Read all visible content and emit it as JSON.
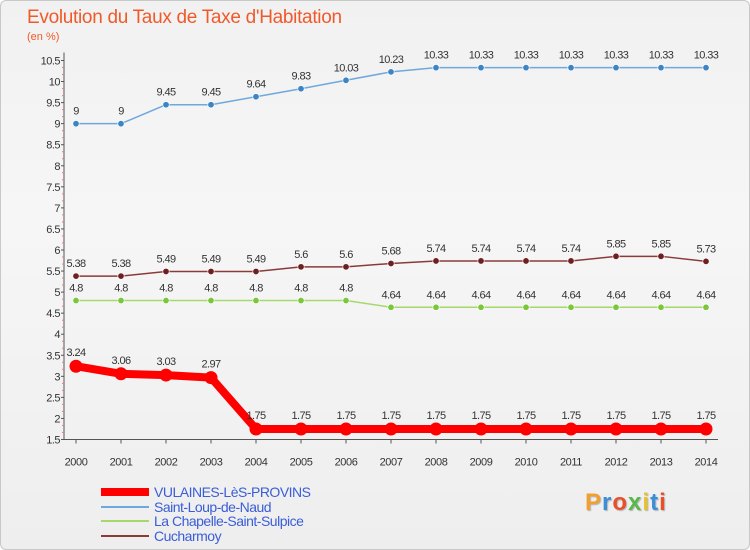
{
  "title": "Evolution du Taux de Taxe d'Habitation",
  "subtitle": "(en %)",
  "chart_data": {
    "type": "line",
    "title": "Evolution du Taux de Taxe d'Habitation",
    "ylabel": "(en %)",
    "x": [
      "2000",
      "2001",
      "2002",
      "2003",
      "2004",
      "2005",
      "2006",
      "2007",
      "2008",
      "2009",
      "2010",
      "2011",
      "2012",
      "2013",
      "2014"
    ],
    "ylim": [
      1.5,
      10.5
    ],
    "yticks": [
      "1.5",
      "2",
      "2.5",
      "3",
      "3.5",
      "4",
      "4.5",
      "5",
      "5.5",
      "6",
      "6.5",
      "7",
      "7.5",
      "8",
      "8.5",
      "9",
      "9.5",
      "10",
      "10.5"
    ],
    "grid": false,
    "series": [
      {
        "name": "VULAINES-LèS-PROVINS",
        "color": "#ff0000",
        "width": 8,
        "values": [
          3.24,
          3.06,
          3.03,
          2.97,
          1.75,
          1.75,
          1.75,
          1.75,
          1.75,
          1.75,
          1.75,
          1.75,
          1.75,
          1.75,
          1.75
        ],
        "labels": [
          "3.24",
          "3.06",
          "3.03",
          "2.97",
          "1.75",
          "1.75",
          "1.75",
          "1.75",
          "1.75",
          "1.75",
          "1.75",
          "1.75",
          "1.75",
          "1.75",
          "1.75"
        ]
      },
      {
        "name": "Saint-Loup-de-Naud",
        "color": "#6fa8dc",
        "marker": "#3c84c4",
        "width": 1.5,
        "values": [
          9,
          9,
          9.45,
          9.45,
          9.64,
          9.83,
          10.03,
          10.23,
          10.33,
          10.33,
          10.33,
          10.33,
          10.33,
          10.33,
          10.33
        ],
        "labels": [
          "9",
          "9",
          "9.45",
          "9.45",
          "9.64",
          "9.83",
          "10.03",
          "10.23",
          "10.33",
          "10.33",
          "10.33",
          "10.33",
          "10.33",
          "10.33",
          "10.33"
        ]
      },
      {
        "name": "La Chapelle-Saint-Sulpice",
        "color": "#a6d96a",
        "marker": "#7cc63b",
        "width": 1.5,
        "values": [
          4.8,
          4.8,
          4.8,
          4.8,
          4.8,
          4.8,
          4.8,
          4.64,
          4.64,
          4.64,
          4.64,
          4.64,
          4.64,
          4.64,
          4.64
        ],
        "labels": [
          "4.8",
          "4.8",
          "4.8",
          "4.8",
          "4.8",
          "4.8",
          "4.8",
          "4.64",
          "4.64",
          "4.64",
          "4.64",
          "4.64",
          "4.64",
          "4.64",
          "4.64"
        ]
      },
      {
        "name": "Cucharmoy",
        "color": "#8b3a3a",
        "marker": "#6e1f1f",
        "width": 1.5,
        "values": [
          5.38,
          5.38,
          5.49,
          5.49,
          5.49,
          5.6,
          5.6,
          5.68,
          5.74,
          5.74,
          5.74,
          5.74,
          5.85,
          5.85,
          5.73
        ],
        "labels": [
          "5.38",
          "5.38",
          "5.49",
          "5.49",
          "5.49",
          "5.6",
          "5.6",
          "5.68",
          "5.74",
          "5.74",
          "5.74",
          "5.74",
          "5.85",
          "5.85",
          "5.73"
        ]
      }
    ],
    "legend_position": "bottom-left"
  },
  "logo": {
    "text": "Proxiti",
    "colors": [
      "#f0a030",
      "#3a8fd8",
      "#e8502a",
      "#58b848",
      "#e8c030",
      "#3a8fd8",
      "#e8502a"
    ]
  }
}
